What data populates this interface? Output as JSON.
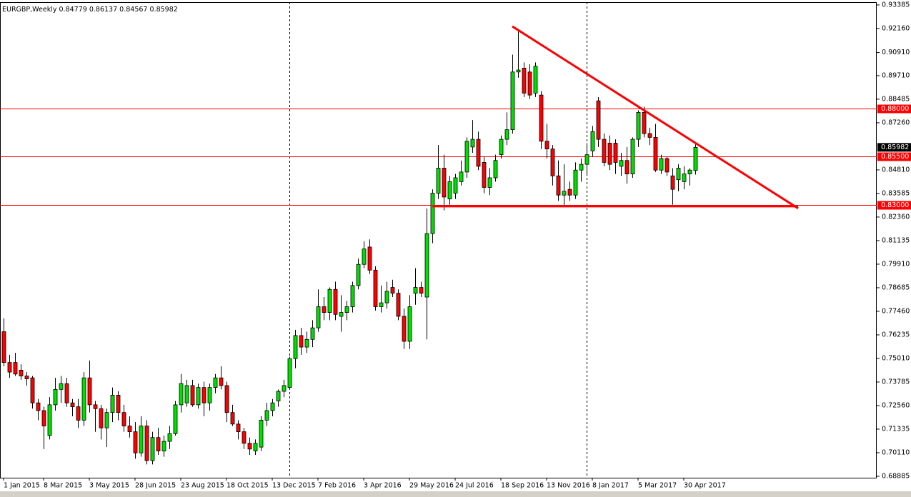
{
  "chart_data": {
    "type": "candlestick",
    "title": "EURGBP,Weekly",
    "categories": [
      "1 Jan 2015",
      null,
      null,
      null,
      null,
      null,
      null,
      "8 Mar 2015",
      null,
      null,
      null,
      null,
      null,
      null,
      null,
      "3 May 2015",
      null,
      null,
      null,
      null,
      null,
      null,
      null,
      "28 Jun 2015",
      null,
      null,
      null,
      null,
      null,
      null,
      null,
      "23 Aug 2015",
      null,
      null,
      null,
      null,
      null,
      null,
      null,
      "18 Oct 2015",
      null,
      null,
      null,
      null,
      null,
      null,
      null,
      "13 Dec 2015",
      null,
      null,
      null,
      null,
      null,
      null,
      null,
      "7 Feb 2016",
      null,
      null,
      null,
      null,
      null,
      null,
      null,
      "3 Apr 2016",
      null,
      null,
      null,
      null,
      null,
      null,
      null,
      "29 May 2016",
      null,
      null,
      null,
      null,
      null,
      null,
      null,
      "24 Jul 2016",
      null,
      null,
      null,
      null,
      null,
      null,
      null,
      "18 Sep 2016",
      null,
      null,
      null,
      null,
      null,
      null,
      null,
      "13 Nov 2016",
      null,
      null,
      null,
      null,
      null,
      null,
      null,
      "8 Jan 2017",
      null,
      null,
      null,
      null,
      null,
      null,
      null,
      "5 Mar 2017",
      null,
      null,
      null,
      null,
      null,
      null,
      null,
      "30 Apr 2017",
      null,
      null
    ],
    "open": [
      0.764,
      0.748,
      0.748,
      0.744,
      0.741,
      0.74,
      0.727,
      0.723,
      0.71,
      0.726,
      0.734,
      0.737,
      0.727,
      0.725,
      0.718,
      0.74,
      0.726,
      0.724,
      0.714,
      0.722,
      0.731,
      0.722,
      0.715,
      0.712,
      0.701,
      0.715,
      0.697,
      0.709,
      0.702,
      0.707,
      0.711,
      0.726,
      0.727,
      0.736,
      0.726,
      0.735,
      0.727,
      0.735,
      0.74,
      0.736,
      0.722,
      0.716,
      0.712,
      0.706,
      0.702,
      0.704,
      0.718,
      0.723,
      0.728,
      0.733,
      0.735,
      0.75,
      0.762,
      0.756,
      0.76,
      0.766,
      0.777,
      0.774,
      0.786,
      0.772,
      0.774,
      0.777,
      0.788,
      0.799,
      0.808,
      0.796,
      0.777,
      0.779,
      0.787,
      0.784,
      0.772,
      0.759,
      0.784,
      0.787,
      0.782,
      0.815,
      0.836,
      0.849,
      0.833,
      0.836,
      0.842,
      0.847,
      0.86,
      0.864,
      0.852,
      0.839,
      0.844,
      0.856,
      0.864,
      0.869,
      0.899,
      0.901,
      0.899,
      0.888,
      0.887,
      0.863,
      0.859,
      0.845,
      0.835,
      0.838,
      0.835,
      0.848,
      0.851,
      0.858,
      0.884,
      0.864,
      0.862,
      0.862,
      0.85,
      0.853,
      0.846,
      0.864,
      0.878,
      0.867,
      0.865,
      0.848,
      0.854,
      0.845,
      0.843,
      0.842,
      0.846,
      0.84779
    ],
    "high": [
      0.771,
      0.752,
      0.753,
      0.747,
      0.743,
      0.741,
      0.729,
      0.725,
      0.73,
      0.74,
      0.741,
      0.74,
      0.729,
      0.729,
      0.743,
      0.749,
      0.728,
      0.726,
      0.724,
      0.735,
      0.733,
      0.726,
      0.72,
      0.717,
      0.72,
      0.718,
      0.712,
      0.714,
      0.71,
      0.715,
      0.728,
      0.742,
      0.739,
      0.739,
      0.737,
      0.738,
      0.737,
      0.742,
      0.746,
      0.738,
      0.726,
      0.718,
      0.714,
      0.709,
      0.708,
      0.72,
      0.727,
      0.729,
      0.734,
      0.739,
      0.751,
      0.765,
      0.766,
      0.764,
      0.77,
      0.786,
      0.782,
      0.787,
      0.79,
      0.783,
      0.78,
      0.79,
      0.802,
      0.811,
      0.812,
      0.798,
      0.788,
      0.79,
      0.791,
      0.786,
      0.776,
      0.783,
      0.797,
      0.79,
      0.828,
      0.838,
      0.861,
      0.856,
      0.845,
      0.846,
      0.853,
      0.865,
      0.874,
      0.868,
      0.855,
      0.849,
      0.856,
      0.866,
      0.878,
      0.908,
      0.92,
      0.904,
      0.903,
      0.904,
      0.889,
      0.872,
      0.861,
      0.853,
      0.851,
      0.842,
      0.852,
      0.854,
      0.862,
      0.871,
      0.886,
      0.867,
      0.866,
      0.864,
      0.857,
      0.86,
      0.865,
      0.879,
      0.881,
      0.87,
      0.872,
      0.856,
      0.855,
      0.849,
      0.851,
      0.85,
      0.849,
      0.86137
    ],
    "low": [
      0.746,
      0.74,
      0.741,
      0.739,
      0.736,
      0.724,
      0.718,
      0.703,
      0.708,
      0.723,
      0.727,
      0.725,
      0.72,
      0.714,
      0.715,
      0.722,
      0.712,
      0.708,
      0.704,
      0.717,
      0.718,
      0.712,
      0.709,
      0.698,
      0.699,
      0.695,
      0.695,
      0.7,
      0.699,
      0.703,
      0.71,
      0.722,
      0.725,
      0.725,
      0.724,
      0.72,
      0.723,
      0.732,
      0.734,
      0.717,
      0.715,
      0.708,
      0.703,
      0.7,
      0.7,
      0.702,
      0.715,
      0.72,
      0.725,
      0.73,
      0.734,
      0.745,
      0.752,
      0.753,
      0.756,
      0.764,
      0.77,
      0.77,
      0.77,
      0.764,
      0.77,
      0.774,
      0.786,
      0.797,
      0.794,
      0.775,
      0.774,
      0.776,
      0.782,
      0.77,
      0.755,
      0.755,
      0.778,
      0.782,
      0.76,
      0.81,
      0.833,
      0.827,
      0.83,
      0.833,
      0.84,
      0.844,
      0.857,
      0.848,
      0.836,
      0.835,
      0.842,
      0.854,
      0.861,
      0.867,
      0.896,
      0.886,
      0.885,
      0.886,
      0.859,
      0.854,
      0.84,
      0.832,
      0.829,
      0.832,
      0.833,
      0.842,
      0.845,
      0.855,
      0.86,
      0.85,
      0.848,
      0.846,
      0.845,
      0.841,
      0.844,
      0.86,
      0.865,
      0.861,
      0.847,
      0.846,
      0.845,
      0.83,
      0.837,
      0.838,
      0.84,
      0.84567
    ],
    "close": [
      0.748,
      0.743,
      0.742,
      0.741,
      0.7395,
      0.727,
      0.723,
      0.715,
      0.726,
      0.734,
      0.737,
      0.727,
      0.725,
      0.718,
      0.74,
      0.726,
      0.724,
      0.714,
      0.722,
      0.731,
      0.722,
      0.715,
      0.712,
      0.701,
      0.715,
      0.697,
      0.709,
      0.702,
      0.707,
      0.711,
      0.726,
      0.737,
      0.736,
      0.726,
      0.735,
      0.727,
      0.735,
      0.74,
      0.736,
      0.722,
      0.716,
      0.712,
      0.706,
      0.703,
      0.706,
      0.718,
      0.723,
      0.727,
      0.733,
      0.736,
      0.75,
      0.762,
      0.756,
      0.76,
      0.766,
      0.777,
      0.774,
      0.786,
      0.773,
      0.774,
      0.777,
      0.788,
      0.799,
      0.807,
      0.796,
      0.777,
      0.779,
      0.785,
      0.784,
      0.772,
      0.759,
      0.777,
      0.787,
      0.784,
      0.815,
      0.836,
      0.849,
      0.834,
      0.842,
      0.844,
      0.847,
      0.863,
      0.864,
      0.85,
      0.839,
      0.844,
      0.853,
      0.864,
      0.869,
      0.899,
      0.9,
      0.888,
      0.887,
      0.902,
      0.863,
      0.859,
      0.845,
      0.835,
      0.837,
      0.835,
      0.848,
      0.851,
      0.856,
      0.868,
      0.864,
      0.852,
      0.851,
      0.852,
      0.853,
      0.846,
      0.864,
      0.878,
      0.867,
      0.865,
      0.848,
      0.854,
      0.847,
      0.838,
      0.849,
      0.846,
      0.848,
      0.85982
    ],
    "up_color": "#00e000",
    "down_color": "#ff0000",
    "ylim": [
      0.6881,
      0.9353
    ],
    "yticks": [
      0.93385,
      {
        "value": 0.9216,
        "label": "0.92160"
      },
      {
        "value": 0.9091,
        "label": "0.90910"
      },
      {
        "value": 0.8971,
        "label": "0.89710"
      },
      0.88485,
      {
        "value": 0.8726,
        "label": "0.87260"
      },
      {
        "value": 0.8481,
        "label": "0.84810"
      },
      0.83585,
      {
        "value": 0.8236,
        "label": "0.82360"
      },
      0.81135,
      {
        "value": 0.7991,
        "label": "0.79910"
      },
      0.78685,
      {
        "value": 0.7746,
        "label": "0.77460"
      },
      0.76235,
      {
        "value": 0.7501,
        "label": "0.75010"
      },
      0.73785,
      {
        "value": 0.7256,
        "label": "0.72560"
      },
      0.71335,
      {
        "value": 0.7011,
        "label": "0.70110"
      },
      0.68885
    ],
    "levels": [
      {
        "value": 0.88,
        "label": "0.88000"
      },
      {
        "value": 0.855,
        "label": "0.85500"
      },
      {
        "value": 0.83,
        "label": "0.83000"
      }
    ],
    "level_color": "#ff0000",
    "trendlines": [
      {
        "x": [
          89,
          139
        ],
        "y": [
          0.9227,
          0.8281
        ]
      },
      {
        "x": [
          75,
          139
        ],
        "y": [
          0.8292,
          0.8292
        ]
      }
    ],
    "separators": [
      50,
      102
    ]
  }
}
